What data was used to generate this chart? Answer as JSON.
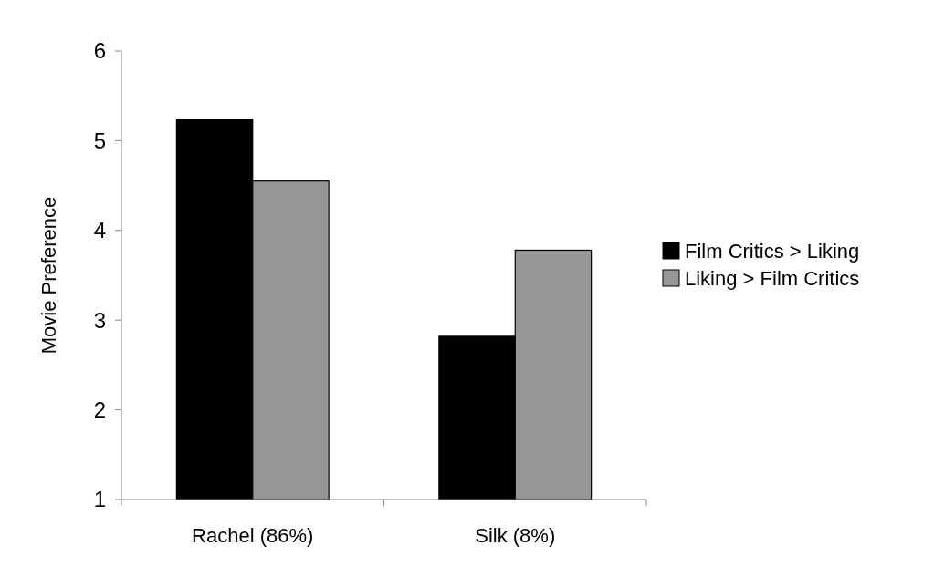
{
  "chart_data": {
    "type": "bar",
    "ylabel": "Movie Preference",
    "categories": [
      "Rachel (86%)",
      "Silk (8%)"
    ],
    "series": [
      {
        "name": "Film Critics > Liking",
        "color": "#000000",
        "values": [
          5.24,
          2.82
        ]
      },
      {
        "name": "Liking > Film Critics",
        "color": "#969696",
        "values": [
          4.55,
          3.78
        ]
      }
    ],
    "ylim": [
      1,
      6
    ],
    "yticks": [
      1,
      2,
      3,
      4,
      5,
      6
    ],
    "grid": false,
    "legend": "right"
  }
}
